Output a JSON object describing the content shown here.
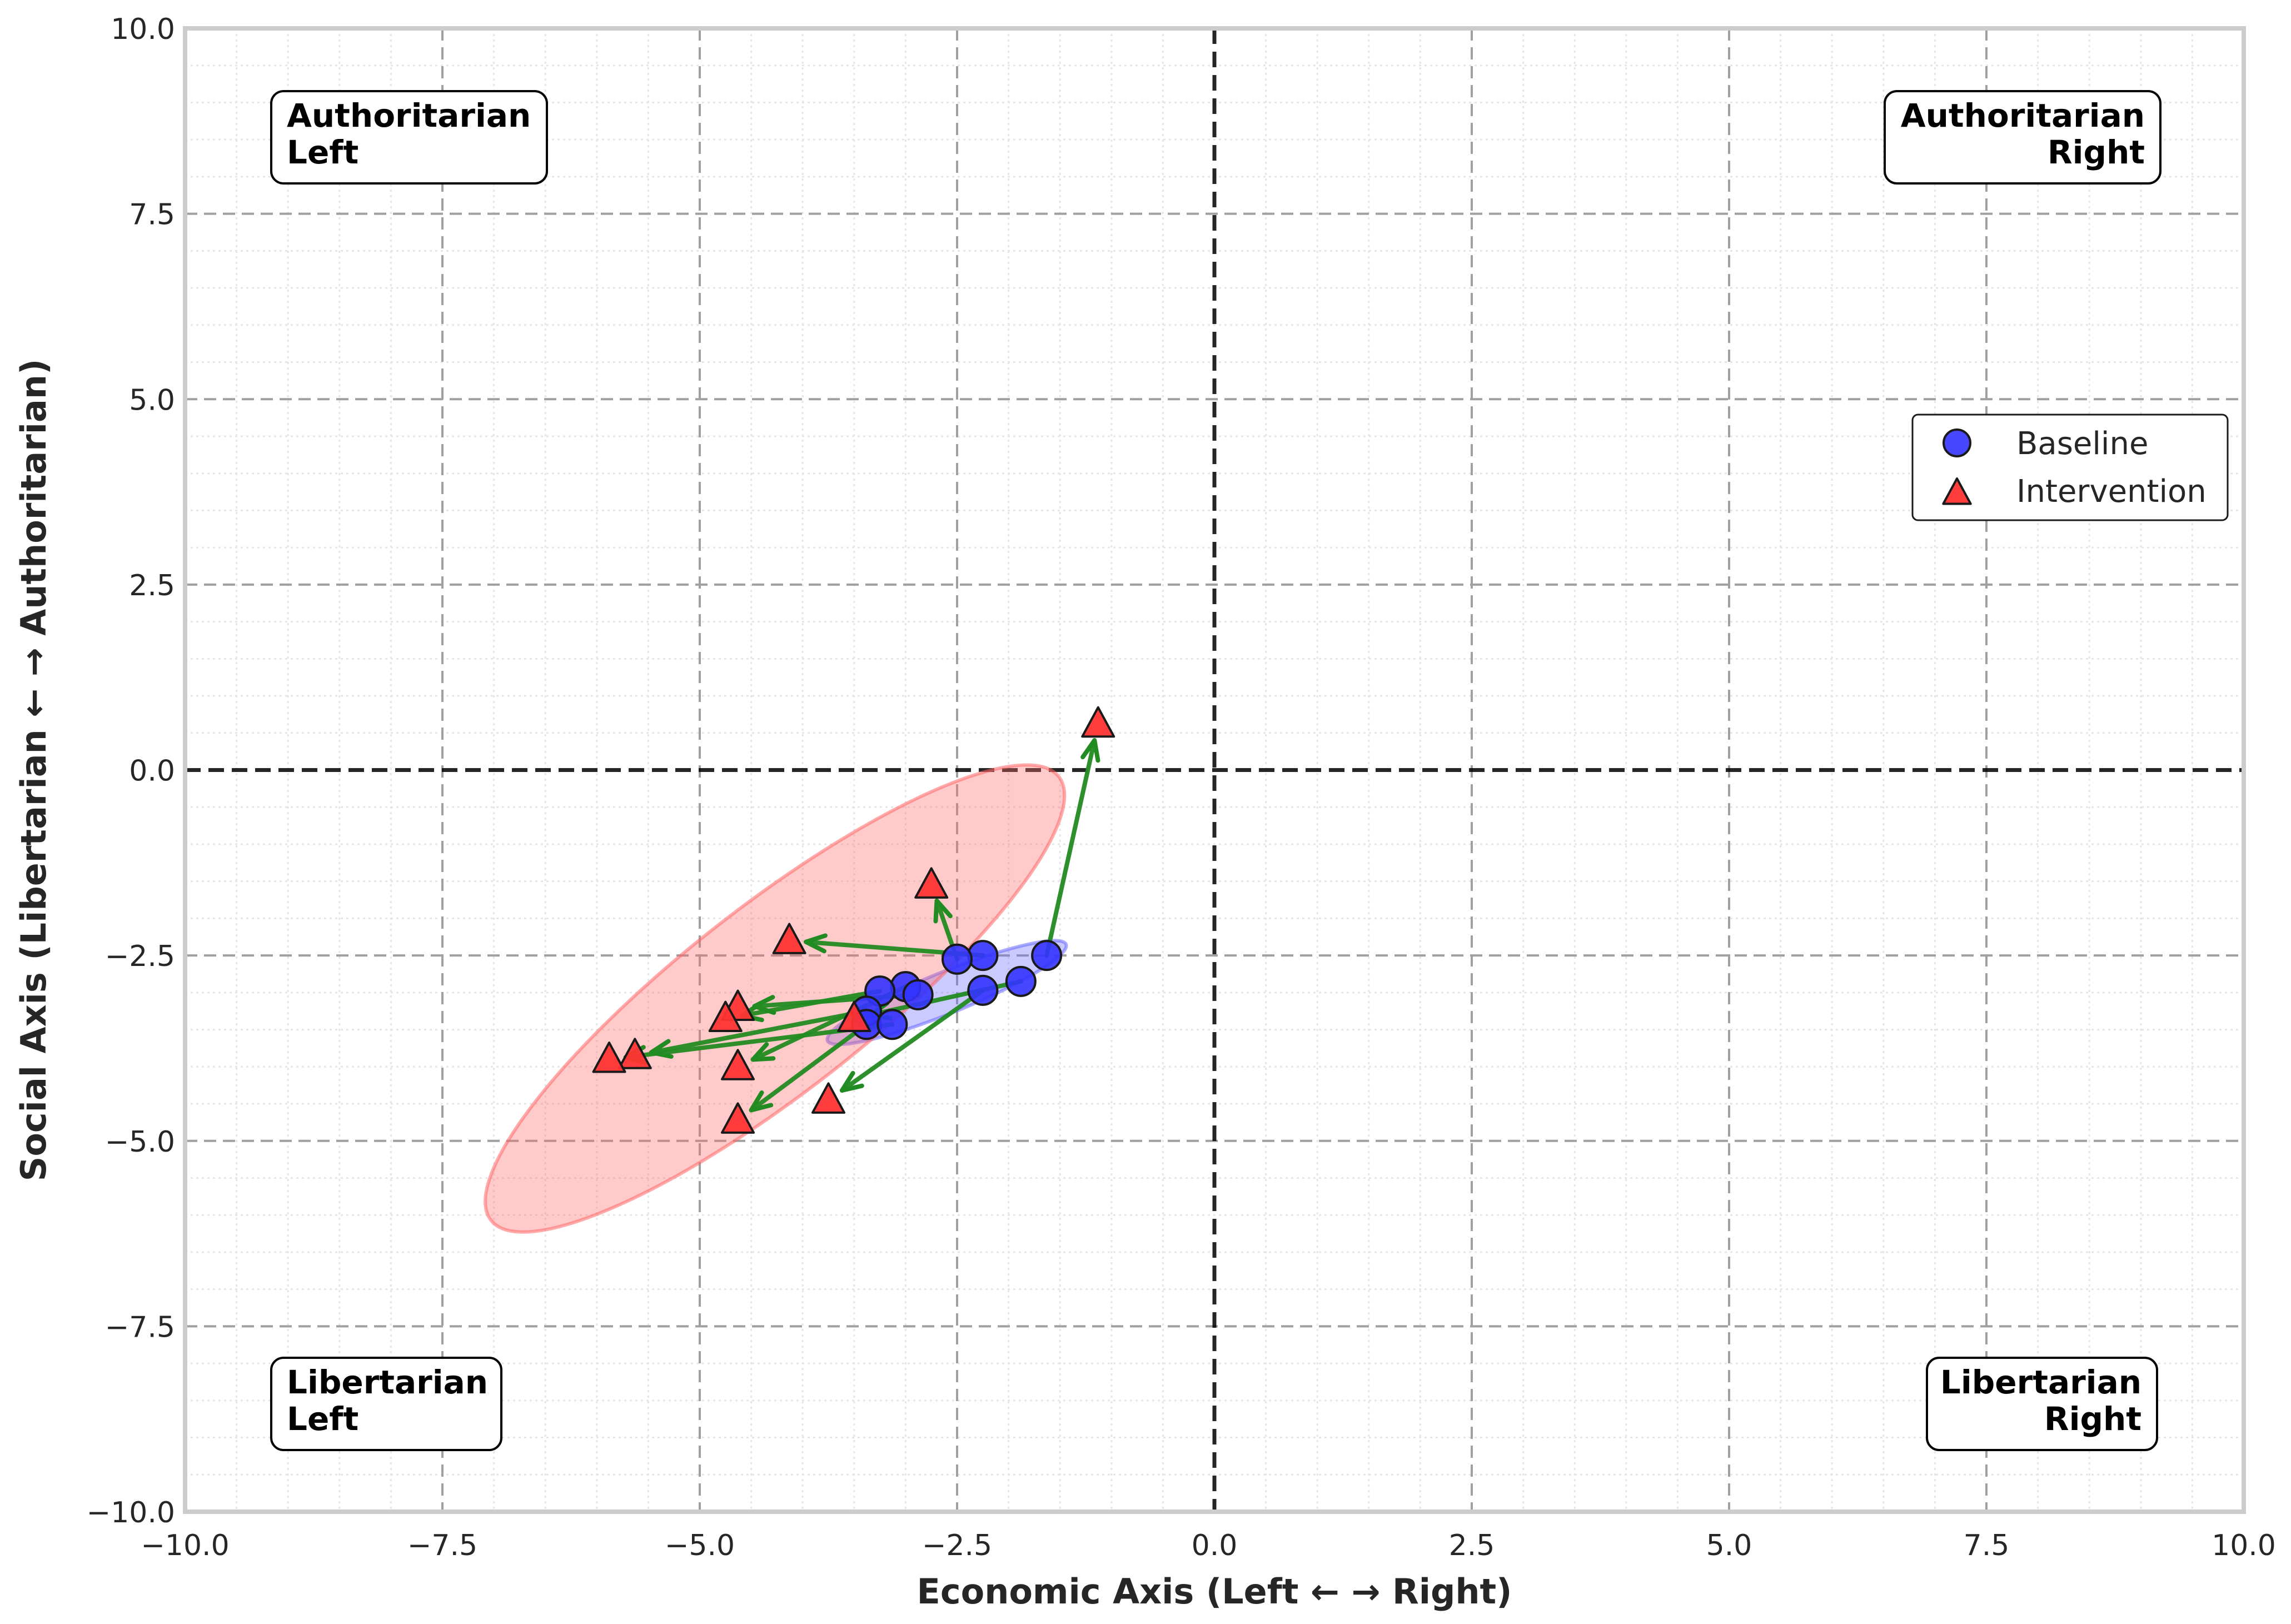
{
  "chart_data": {
    "type": "scatter",
    "title": "",
    "xlabel": "Economic Axis (Left ← → Right)",
    "ylabel": "Social Axis (Libertarian ← → Authoritarian)",
    "xlim": [
      -10,
      10
    ],
    "ylim": [
      -10,
      10
    ],
    "grid": true,
    "legend_position": "center-right",
    "x_ticks": [
      -10.0,
      -7.5,
      -5.0,
      -2.5,
      0.0,
      2.5,
      5.0,
      7.5,
      10.0
    ],
    "y_ticks": [
      -10.0,
      -7.5,
      -5.0,
      -2.5,
      0.0,
      2.5,
      5.0,
      7.5,
      10.0
    ],
    "x_tick_labels": [
      "−10.0",
      "−7.5",
      "−5.0",
      "−2.5",
      "0.0",
      "2.5",
      "5.0",
      "7.5",
      "10.0"
    ],
    "y_tick_labels": [
      "−10.0",
      "−7.5",
      "−5.0",
      "−2.5",
      "0.0",
      "2.5",
      "5.0",
      "7.5",
      "10.0"
    ],
    "quadrant_labels": [
      {
        "name": "authoritarian-left",
        "lines": [
          "Authoritarian",
          "Left"
        ],
        "position": "top-left"
      },
      {
        "name": "authoritarian-right",
        "lines": [
          "Authoritarian",
          "Right"
        ],
        "position": "top-right"
      },
      {
        "name": "libertarian-left",
        "lines": [
          "Libertarian",
          "Left"
        ],
        "position": "bottom-left"
      },
      {
        "name": "libertarian-right",
        "lines": [
          "Libertarian",
          "Right"
        ],
        "position": "bottom-right"
      }
    ],
    "series": [
      {
        "name": "Baseline",
        "marker": "circle",
        "color": "#3333ff",
        "points": [
          {
            "x": -1.63,
            "y": -2.5
          },
          {
            "x": -2.25,
            "y": -2.5
          },
          {
            "x": -2.5,
            "y": -2.55
          },
          {
            "x": -1.88,
            "y": -2.85
          },
          {
            "x": -2.25,
            "y": -2.97
          },
          {
            "x": -3.0,
            "y": -2.92
          },
          {
            "x": -3.25,
            "y": -2.98
          },
          {
            "x": -2.88,
            "y": -3.03
          },
          {
            "x": -3.38,
            "y": -3.25
          },
          {
            "x": -3.38,
            "y": -3.43
          },
          {
            "x": -3.13,
            "y": -3.43
          }
        ]
      },
      {
        "name": "Intervention",
        "marker": "triangle",
        "color": "#ff3333",
        "points": [
          {
            "x": -1.13,
            "y": 0.62
          },
          {
            "x": -2.75,
            "y": -1.55
          },
          {
            "x": -4.13,
            "y": -2.3
          },
          {
            "x": -4.63,
            "y": -3.2
          },
          {
            "x": -4.75,
            "y": -3.35
          },
          {
            "x": -3.5,
            "y": -3.35
          },
          {
            "x": -4.63,
            "y": -4.0
          },
          {
            "x": -5.63,
            "y": -3.85
          },
          {
            "x": -5.88,
            "y": -3.9
          },
          {
            "x": -3.75,
            "y": -4.45
          },
          {
            "x": -4.63,
            "y": -4.72
          }
        ]
      }
    ],
    "arrows": [
      {
        "from": [
          -1.63,
          -2.5
        ],
        "to": [
          -1.13,
          0.62
        ]
      },
      {
        "from": [
          -2.5,
          -2.55
        ],
        "to": [
          -2.75,
          -1.55
        ]
      },
      {
        "from": [
          -2.25,
          -2.5
        ],
        "to": [
          -4.13,
          -2.3
        ]
      },
      {
        "from": [
          -2.88,
          -3.03
        ],
        "to": [
          -4.63,
          -3.2
        ]
      },
      {
        "from": [
          -3.25,
          -2.98
        ],
        "to": [
          -4.75,
          -3.35
        ]
      },
      {
        "from": [
          -1.88,
          -2.85
        ],
        "to": [
          -3.5,
          -3.35
        ]
      },
      {
        "from": [
          -3.0,
          -2.92
        ],
        "to": [
          -4.63,
          -4.0
        ]
      },
      {
        "from": [
          -3.38,
          -3.25
        ],
        "to": [
          -5.63,
          -3.85
        ]
      },
      {
        "from": [
          -3.13,
          -3.43
        ],
        "to": [
          -5.88,
          -3.9
        ]
      },
      {
        "from": [
          -2.25,
          -2.97
        ],
        "to": [
          -3.75,
          -4.45
        ]
      },
      {
        "from": [
          -3.38,
          -3.43
        ],
        "to": [
          -4.63,
          -4.72
        ]
      }
    ],
    "ellipses": [
      {
        "series": "Baseline",
        "center": [
          -2.6,
          -3.0
        ],
        "semi_axes": [
          1.25,
          0.28
        ],
        "angle_deg": 22,
        "color": "#6666ff"
      },
      {
        "series": "Intervention",
        "center": [
          -4.27,
          -3.08
        ],
        "semi_axes": [
          3.5,
          1.25
        ],
        "angle_deg": 38,
        "color": "#ff6666"
      }
    ],
    "arrow_color": "#228b22"
  }
}
